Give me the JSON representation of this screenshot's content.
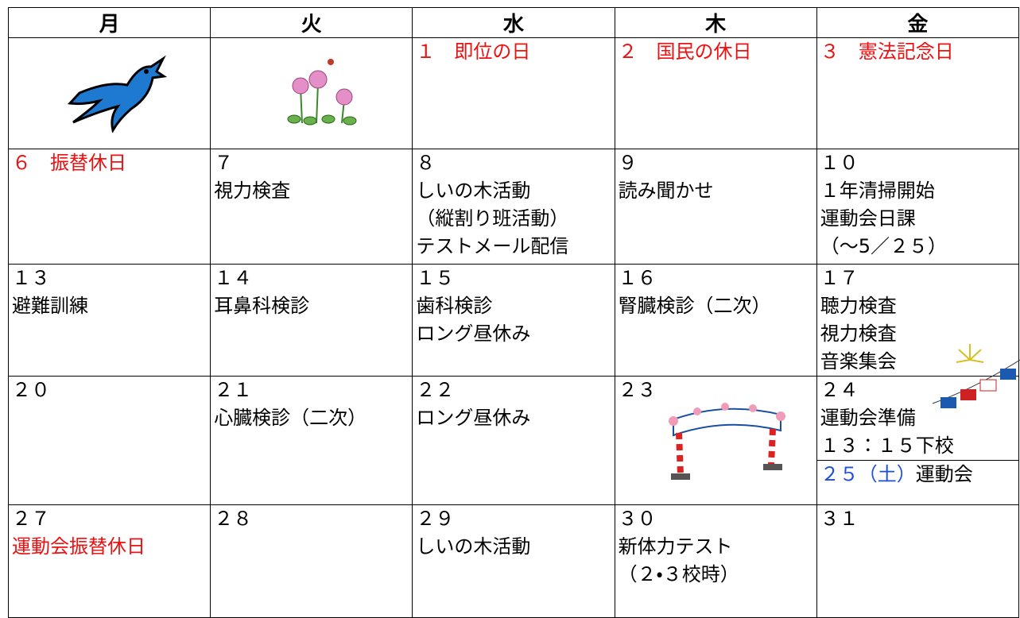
{
  "header": {
    "days": [
      "月",
      "火",
      "水",
      "木",
      "金"
    ]
  },
  "weeks": [
    {
      "cells": [
        {
          "lines": []
        },
        {
          "lines": []
        },
        {
          "lines": [
            {
              "text": "１　即位の日",
              "color": "#ee1111"
            }
          ]
        },
        {
          "lines": [
            {
              "text": "２　国民の休日",
              "color": "#ee1111"
            }
          ]
        },
        {
          "lines": [
            {
              "text": "３　憲法記念日",
              "color": "#ee1111"
            }
          ]
        }
      ]
    },
    {
      "cells": [
        {
          "lines": [
            {
              "text": "６　振替休日",
              "color": "#ee1111"
            }
          ]
        },
        {
          "lines": [
            {
              "text": "７"
            },
            {
              "text": "視力検査"
            }
          ]
        },
        {
          "lines": [
            {
              "text": "８"
            },
            {
              "text": "しいの木活動"
            },
            {
              "text": "（縦割り班活動）"
            },
            {
              "text": "テストメール配信"
            }
          ]
        },
        {
          "lines": [
            {
              "text": "９"
            },
            {
              "text": "読み聞かせ"
            }
          ]
        },
        {
          "lines": [
            {
              "text": "１０"
            },
            {
              "text": "１年清掃開始"
            },
            {
              "text": "運動会日課"
            },
            {
              "text": "（～5／２５）"
            }
          ]
        }
      ]
    },
    {
      "cells": [
        {
          "lines": [
            {
              "text": "１３"
            },
            {
              "text": "避難訓練"
            }
          ]
        },
        {
          "lines": [
            {
              "text": "１４"
            },
            {
              "text": "耳鼻科検診"
            }
          ]
        },
        {
          "lines": [
            {
              "text": "１５"
            },
            {
              "text": "歯科検診"
            },
            {
              "text": "ロング昼休み"
            }
          ]
        },
        {
          "lines": [
            {
              "text": "１６"
            },
            {
              "text": "腎臓検診（二次）"
            }
          ]
        },
        {
          "lines": [
            {
              "text": "１７"
            },
            {
              "text": "聴力検査"
            },
            {
              "text": "視力検査"
            },
            {
              "text": "音楽集会"
            }
          ]
        }
      ]
    },
    {
      "cells": [
        {
          "lines": [
            {
              "text": "２０"
            }
          ]
        },
        {
          "lines": [
            {
              "text": "２１"
            },
            {
              "text": "心臓検診（二次）"
            }
          ]
        },
        {
          "lines": [
            {
              "text": "２２"
            },
            {
              "text": "ロング昼休み"
            }
          ]
        },
        {
          "lines": [
            {
              "text": "２３"
            }
          ]
        },
        {
          "lines": [
            {
              "text": "２４"
            },
            {
              "text": "運動会準備"
            },
            {
              "text": "１３：１５下校"
            }
          ],
          "note": [
            {
              "text": "２５（土）",
              "color": "#1a4fe0"
            },
            {
              "text": "運動会"
            }
          ]
        }
      ]
    },
    {
      "cells": [
        {
          "lines": [
            {
              "text": "２７"
            },
            {
              "text": "運動会振替休日",
              "color": "#ee1111"
            }
          ]
        },
        {
          "lines": [
            {
              "text": "２８"
            }
          ]
        },
        {
          "lines": [
            {
              "text": "２９"
            },
            {
              "text": "しいの木活動"
            }
          ]
        },
        {
          "lines": [
            {
              "text": "３０"
            },
            {
              "text": "新体力テスト"
            },
            {
              "text": "（２・３校時）"
            }
          ]
        },
        {
          "lines": [
            {
              "text": "３１"
            }
          ]
        }
      ]
    }
  ]
}
